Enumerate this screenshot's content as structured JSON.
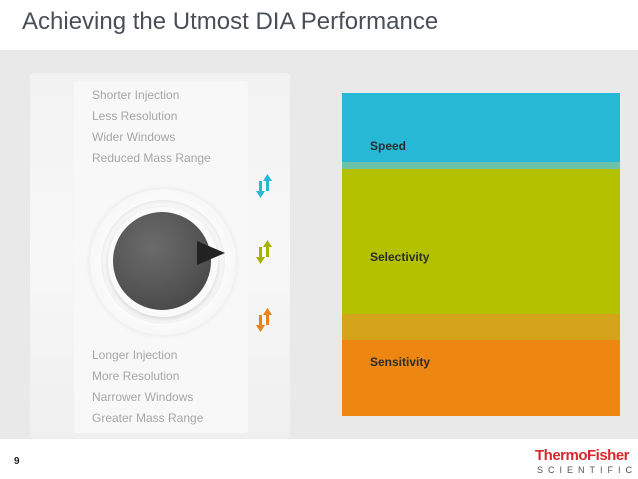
{
  "slide": {
    "title": "Achieving the Utmost DIA Performance",
    "page_number": "9"
  },
  "dial": {
    "top_options": [
      "Shorter Injection",
      "Less Resolution",
      "Wider Windows",
      "Reduced Mass Range"
    ],
    "bottom_options": [
      "Longer Injection",
      "More Resolution",
      "Narrower Windows",
      "Greater Mass Range"
    ]
  },
  "bands": {
    "speed": {
      "label": "Speed",
      "color": "#27b8d6"
    },
    "selectivity": {
      "label": "Selectivity",
      "color": "#b3c100"
    },
    "sensitivity": {
      "label": "Sensitivity",
      "color": "#ed8712"
    }
  },
  "arrow_colors": {
    "speed": "#27b8d6",
    "selectivity": "#a6b400",
    "sensitivity": "#e8821a"
  },
  "logo": {
    "brand": "ThermoFisher",
    "sub": "SCIENTIFIC"
  }
}
